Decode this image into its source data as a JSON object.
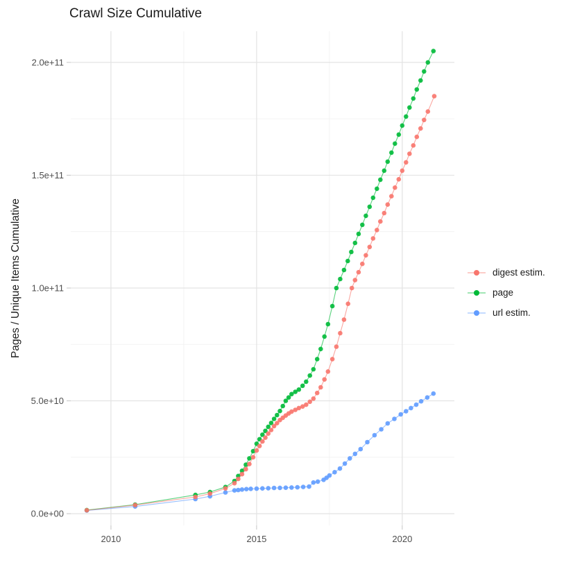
{
  "page": {
    "background": "#ffffff"
  },
  "chart_data": {
    "type": "scatter",
    "title": "Crawl Size Cumulative",
    "xlabel": "",
    "ylabel": "Pages / Unique Items Cumulative",
    "legend_position": "right",
    "grid": true,
    "xlim": [
      2008.62,
      2021.79
    ],
    "ylim": [
      -5200000000.0,
      213800000000.0
    ],
    "x_ticks": [
      {
        "v": 2010,
        "label": "2010"
      },
      {
        "v": 2015,
        "label": "2015"
      },
      {
        "v": 2020,
        "label": "2020"
      }
    ],
    "x_minor": [
      2012.5,
      2017.5
    ],
    "y_ticks": [
      {
        "v": 0,
        "label": "0.0e+00"
      },
      {
        "v": 50000000000.0,
        "label": "5.0e+10"
      },
      {
        "v": 100000000000.0,
        "label": "1.0e+11"
      },
      {
        "v": 150000000000.0,
        "label": "1.5e+11"
      },
      {
        "v": 200000000000.0,
        "label": "2.0e+11"
      }
    ],
    "y_minor": [
      25000000000.0,
      75000000000.0,
      125000000000.0,
      175000000000.0
    ],
    "series": [
      {
        "name": "digest estim.",
        "color": "#F8766D",
        "points": [
          [
            2009.17,
            1500000000.0
          ],
          [
            2010.83,
            3800000000.0
          ],
          [
            2012.9,
            7400000000.0
          ],
          [
            2013.4,
            8900000000.0
          ],
          [
            2013.93,
            11200000000.0
          ],
          [
            2014.24,
            13500000000.0
          ],
          [
            2014.37,
            15400000000.0
          ],
          [
            2014.5,
            17500000000.0
          ],
          [
            2014.63,
            19700000000.0
          ],
          [
            2014.75,
            22000000000.0
          ],
          [
            2014.88,
            25000000000.0
          ],
          [
            2015.0,
            28000000000.0
          ],
          [
            2015.1,
            30000000000.0
          ],
          [
            2015.2,
            32000000000.0
          ],
          [
            2015.3,
            33700000000.0
          ],
          [
            2015.4,
            35500000000.0
          ],
          [
            2015.5,
            37100000000.0
          ],
          [
            2015.6,
            38800000000.0
          ],
          [
            2015.7,
            40100000000.0
          ],
          [
            2015.8,
            41500000000.0
          ],
          [
            2015.9,
            42500000000.0
          ],
          [
            2016.0,
            43500000000.0
          ],
          [
            2016.1,
            44400000000.0
          ],
          [
            2016.2,
            45200000000.0
          ],
          [
            2016.33,
            46000000000.0
          ],
          [
            2016.45,
            46800000000.0
          ],
          [
            2016.58,
            47500000000.0
          ],
          [
            2016.7,
            48300000000.0
          ],
          [
            2016.83,
            49600000000.0
          ],
          [
            2016.95,
            51000000000.0
          ],
          [
            2017.08,
            53500000000.0
          ],
          [
            2017.2,
            56000000000.0
          ],
          [
            2017.33,
            59500000000.0
          ],
          [
            2017.45,
            63000000000.0
          ],
          [
            2017.6,
            68500000000.0
          ],
          [
            2017.74,
            74000000000.0
          ],
          [
            2017.87,
            80000000000.0
          ],
          [
            2018.0,
            86000000000.0
          ],
          [
            2018.14,
            93000000000.0
          ],
          [
            2018.27,
            100000000000.0
          ],
          [
            2018.38,
            103500000000.0
          ],
          [
            2018.5,
            107000000000.0
          ],
          [
            2018.63,
            110700000000.0
          ],
          [
            2018.75,
            114500000000.0
          ],
          [
            2018.88,
            118200000000.0
          ],
          [
            2019.0,
            122000000000.0
          ],
          [
            2019.13,
            125700000000.0
          ],
          [
            2019.25,
            129500000000.0
          ],
          [
            2019.38,
            133200000000.0
          ],
          [
            2019.5,
            137000000000.0
          ],
          [
            2019.63,
            140700000000.0
          ],
          [
            2019.75,
            144500000000.0
          ],
          [
            2019.88,
            148200000000.0
          ],
          [
            2020.0,
            152000000000.0
          ],
          [
            2020.13,
            155700000000.0
          ],
          [
            2020.25,
            159500000000.0
          ],
          [
            2020.38,
            163200000000.0
          ],
          [
            2020.5,
            167000000000.0
          ],
          [
            2020.63,
            170700000000.0
          ],
          [
            2020.75,
            174500000000.0
          ],
          [
            2020.88,
            178200000000.0
          ],
          [
            2021.1,
            185000000000.0
          ]
        ]
      },
      {
        "name": "page",
        "color": "#00BA38",
        "points": [
          [
            2009.17,
            1600000000.0
          ],
          [
            2010.83,
            4000000000.0
          ],
          [
            2012.9,
            8300000000.0
          ],
          [
            2013.4,
            9600000000.0
          ],
          [
            2013.93,
            11800000000.0
          ],
          [
            2014.24,
            14500000000.0
          ],
          [
            2014.37,
            16700000000.0
          ],
          [
            2014.5,
            19000000000.0
          ],
          [
            2014.63,
            21700000000.0
          ],
          [
            2014.75,
            24500000000.0
          ],
          [
            2014.88,
            27700000000.0
          ],
          [
            2015.0,
            31000000000.0
          ],
          [
            2015.1,
            33000000000.0
          ],
          [
            2015.2,
            35000000000.0
          ],
          [
            2015.3,
            36700000000.0
          ],
          [
            2015.4,
            38500000000.0
          ],
          [
            2015.5,
            40200000000.0
          ],
          [
            2015.6,
            42000000000.0
          ],
          [
            2015.7,
            43700000000.0
          ],
          [
            2015.8,
            45500000000.0
          ],
          [
            2015.9,
            47700000000.0
          ],
          [
            2016.0,
            50000000000.0
          ],
          [
            2016.1,
            51500000000.0
          ],
          [
            2016.2,
            53000000000.0
          ],
          [
            2016.33,
            54000000000.0
          ],
          [
            2016.45,
            55000000000.0
          ],
          [
            2016.58,
            56700000000.0
          ],
          [
            2016.7,
            58500000000.0
          ],
          [
            2016.83,
            61200000000.0
          ],
          [
            2016.95,
            64000000000.0
          ],
          [
            2017.08,
            68500000000.0
          ],
          [
            2017.2,
            73000000000.0
          ],
          [
            2017.33,
            78500000000.0
          ],
          [
            2017.45,
            84000000000.0
          ],
          [
            2017.6,
            92000000000.0
          ],
          [
            2017.74,
            100000000000.0
          ],
          [
            2017.87,
            104000000000.0
          ],
          [
            2018.0,
            108000000000.0
          ],
          [
            2018.13,
            112000000000.0
          ],
          [
            2018.25,
            116000000000.0
          ],
          [
            2018.38,
            120000000000.0
          ],
          [
            2018.5,
            124000000000.0
          ],
          [
            2018.63,
            128000000000.0
          ],
          [
            2018.75,
            132000000000.0
          ],
          [
            2018.88,
            136000000000.0
          ],
          [
            2019.0,
            140000000000.0
          ],
          [
            2019.13,
            144000000000.0
          ],
          [
            2019.25,
            148000000000.0
          ],
          [
            2019.38,
            152000000000.0
          ],
          [
            2019.5,
            156000000000.0
          ],
          [
            2019.63,
            160000000000.0
          ],
          [
            2019.75,
            164000000000.0
          ],
          [
            2019.88,
            168000000000.0
          ],
          [
            2020.0,
            172000000000.0
          ],
          [
            2020.13,
            176000000000.0
          ],
          [
            2020.25,
            180000000000.0
          ],
          [
            2020.38,
            184000000000.0
          ],
          [
            2020.5,
            188000000000.0
          ],
          [
            2020.63,
            192000000000.0
          ],
          [
            2020.75,
            196000000000.0
          ],
          [
            2020.88,
            200000000000.0
          ],
          [
            2021.07,
            205000000000.0
          ]
        ]
      },
      {
        "name": "url estim.",
        "color": "#619CFF",
        "points": [
          [
            2009.17,
            1400000000.0
          ],
          [
            2010.83,
            3200000000.0
          ],
          [
            2012.9,
            6500000000.0
          ],
          [
            2013.4,
            7700000000.0
          ],
          [
            2013.93,
            9400000000.0
          ],
          [
            2014.24,
            10300000000.0
          ],
          [
            2014.37,
            10500000000.0
          ],
          [
            2014.5,
            10700000000.0
          ],
          [
            2014.65,
            10900000000.0
          ],
          [
            2014.8,
            11000000000.0
          ],
          [
            2015.0,
            11100000000.0
          ],
          [
            2015.2,
            11200000000.0
          ],
          [
            2015.4,
            11300000000.0
          ],
          [
            2015.6,
            11400000000.0
          ],
          [
            2015.8,
            11450000000.0
          ],
          [
            2016.0,
            11500000000.0
          ],
          [
            2016.2,
            11600000000.0
          ],
          [
            2016.4,
            11700000000.0
          ],
          [
            2016.6,
            11850000000.0
          ],
          [
            2016.8,
            12000000000.0
          ],
          [
            2016.95,
            13800000000.0
          ],
          [
            2017.1,
            14200000000.0
          ],
          [
            2017.3,
            15000000000.0
          ],
          [
            2017.4,
            15900000000.0
          ],
          [
            2017.5,
            16900000000.0
          ],
          [
            2017.68,
            18400000000.0
          ],
          [
            2017.86,
            20000000000.0
          ],
          [
            2018.03,
            22200000000.0
          ],
          [
            2018.2,
            24500000000.0
          ],
          [
            2018.38,
            26500000000.0
          ],
          [
            2018.57,
            28600000000.0
          ],
          [
            2018.8,
            31700000000.0
          ],
          [
            2019.05,
            34800000000.0
          ],
          [
            2019.28,
            37400000000.0
          ],
          [
            2019.5,
            40000000000.0
          ],
          [
            2019.73,
            42000000000.0
          ],
          [
            2019.95,
            44000000000.0
          ],
          [
            2020.13,
            45400000000.0
          ],
          [
            2020.3,
            46800000000.0
          ],
          [
            2020.48,
            48300000000.0
          ],
          [
            2020.65,
            49800000000.0
          ],
          [
            2020.86,
            51500000000.0
          ],
          [
            2021.07,
            53200000000.0
          ]
        ]
      }
    ]
  }
}
